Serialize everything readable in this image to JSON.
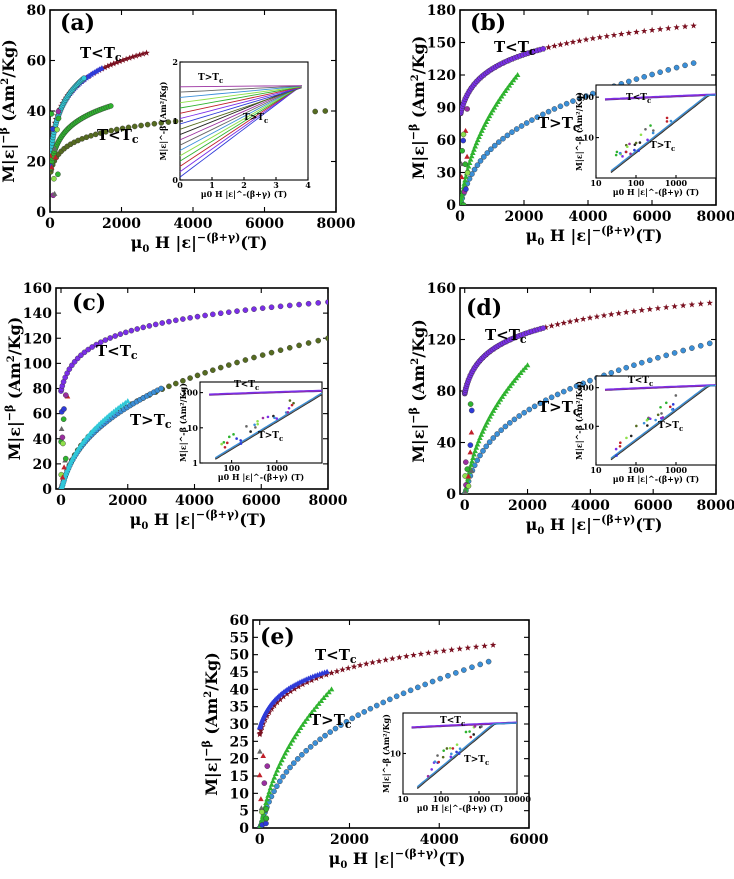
{
  "figure": {
    "colors": {
      "red": "#c0202a",
      "maroon": "#7a1020",
      "blue": "#2e3ad8",
      "violet": "#7a2ee8",
      "olive": "#556b20",
      "green": "#2fb32f",
      "lime": "#8ee04a",
      "sky": "#3a8fd8",
      "cyan": "#30c8d8",
      "grey": "#666666",
      "black": "#222222",
      "purple": "#9a2fa0"
    }
  },
  "chart_data": [
    {
      "id": "a",
      "type": "scatter",
      "panel_label": "(a)",
      "ylabel": "M|ε|^-β (Am²/Kg)",
      "ylabel_parts": {
        "main": "M|ε|",
        "exp": "−β",
        "unit": "(Am",
        "unit_sup": "2",
        "unit_end": "/Kg)"
      },
      "xlabel_parts": {
        "mu": "μ",
        "sub": "0",
        "main": " H |ε|",
        "exp": "−(β+γ)",
        "unit": "(T)"
      },
      "xlim": [
        0,
        8000
      ],
      "ylim": [
        0,
        80
      ],
      "xticks": [
        0,
        2000,
        4000,
        6000,
        8000
      ],
      "xtick_labels": [
        "0",
        "2000",
        "4000",
        "6000",
        "8000"
      ],
      "yticks": [
        0,
        20,
        40,
        60,
        80
      ],
      "ytick_labels": [
        "0",
        "20",
        "40",
        "60",
        "80"
      ],
      "annotations": [
        "T<T",
        "T<T"
      ],
      "annotation_sub": "c",
      "series": [
        {
          "name": "olive-long",
          "color": "olive",
          "marker": "circle",
          "branch": "below",
          "a": 40.0,
          "k": 0.00072,
          "xmax": 7700
        },
        {
          "name": "red-star",
          "color": "maroon",
          "marker": "star",
          "branch": "below",
          "a": 63.0,
          "k": 0.00055,
          "xmax": 2700
        },
        {
          "name": "blue",
          "color": "blue",
          "marker": "tri",
          "branch": "below",
          "a": 57.0,
          "k": 0.0006,
          "xmax": 1450
        },
        {
          "name": "cyan",
          "color": "cyan",
          "marker": "circle",
          "branch": "below",
          "a": 53.0,
          "k": 0.0009,
          "xmax": 950
        },
        {
          "name": "green",
          "color": "green",
          "marker": "circle",
          "branch": "below",
          "a": 42.0,
          "k": 0.0009,
          "xmax": 1700
        }
      ],
      "inset": {
        "type": "line",
        "xlim": [
          0,
          4
        ],
        "ylim": [
          0,
          2
        ],
        "xticks": [
          0,
          1,
          2,
          3,
          4
        ],
        "xtick_labels": [
          "0",
          "1",
          "2",
          "3",
          "4"
        ],
        "yticks": [
          0,
          1,
          2
        ],
        "ytick_labels": [
          "0",
          "1",
          "2"
        ],
        "xlabel": "μ0 H |ε|^-(β+γ) (T)",
        "ylabel": "M|ε|^-β (Am²/Kg)",
        "annotations": [
          "T>T",
          "T>T"
        ],
        "annotation_sub": "c"
      }
    },
    {
      "id": "b",
      "type": "scatter",
      "panel_label": "(b)",
      "ylabel_parts": {
        "main": "M|ε|",
        "exp": "−β",
        "unit": "(Am",
        "unit_sup": "2",
        "unit_end": "/Kg)"
      },
      "xlabel_parts": {
        "mu": "μ",
        "sub": "0",
        "main": " H |ε|",
        "exp": "−(β+γ)",
        "unit": "(T)"
      },
      "xlim": [
        0,
        8000
      ],
      "ylim": [
        0,
        180
      ],
      "xticks": [
        0,
        2000,
        4000,
        6000,
        8000
      ],
      "xtick_labels": [
        "0",
        "2000",
        "4000",
        "6000",
        "8000"
      ],
      "yticks": [
        0,
        30,
        60,
        90,
        120,
        150,
        180
      ],
      "ytick_labels": [
        "0",
        "30",
        "60",
        "90",
        "120",
        "150",
        "180"
      ],
      "annotations": [
        "T<T",
        "T>T"
      ],
      "annotation_sub": "c",
      "series": [
        {
          "name": "maroon-star",
          "color": "maroon",
          "marker": "star",
          "branch": "below",
          "a": 82.0,
          "b": 1.0,
          "xmax": 7300
        },
        {
          "name": "violet",
          "color": "violet",
          "marker": "circle",
          "branch": "below",
          "a": 82.0,
          "b": 1.0,
          "xmax": 2600
        },
        {
          "name": "sky",
          "color": "sky",
          "marker": "circle",
          "branch": "above",
          "a": 131.0,
          "k": 0.00032,
          "xmax": 7300
        },
        {
          "name": "green",
          "color": "green",
          "marker": "tri",
          "branch": "above",
          "a": 120.0,
          "k": 0.00035,
          "xmax": 1800
        }
      ],
      "inset": {
        "type": "loglog",
        "xlim": [
          10,
          10000
        ],
        "ylim": [
          1,
          200
        ],
        "xticks": [
          10,
          100,
          1000
        ],
        "xtick_labels": [
          "10",
          "100",
          "1000"
        ],
        "yticks": [
          10,
          100
        ],
        "ytick_labels": [
          "10",
          "100"
        ],
        "xlabel": "μ0 H |ε|^-(β+γ) (T)",
        "ylabel": "M|ε|^-β (Am²/Kg)",
        "annotations": [
          "T<T",
          "T>T"
        ],
        "annotation_sub": "c"
      }
    },
    {
      "id": "c",
      "type": "scatter",
      "panel_label": "(c)",
      "ylabel_parts": {
        "main": "M|ε|",
        "exp": "−β",
        "unit": "(Am",
        "unit_sup": "2",
        "unit_end": "/Kg)"
      },
      "xlabel_parts": {
        "mu": "μ",
        "sub": "0",
        "main": " H |ε|",
        "exp": "−(β+γ)",
        "unit": "(T)"
      },
      "xlim": [
        -150,
        8000
      ],
      "ylim": [
        0,
        160
      ],
      "xticks": [
        0,
        2000,
        4000,
        6000,
        8000
      ],
      "xtick_labels": [
        "0",
        "2000",
        "4000",
        "6000",
        "8000"
      ],
      "yticks": [
        0,
        20,
        40,
        60,
        80,
        100,
        120,
        140,
        160
      ],
      "ytick_labels": [
        "0",
        "20",
        "40",
        "60",
        "80",
        "100",
        "120",
        "140",
        "160"
      ],
      "annotations": [
        "T<T",
        "T>T"
      ],
      "annotation_sub": "c",
      "series": [
        {
          "name": "violet",
          "color": "violet",
          "marker": "circle",
          "branch": "below",
          "a": 78.0,
          "b": 1.0,
          "xmax": 8000
        },
        {
          "name": "olive",
          "color": "olive",
          "marker": "circle",
          "branch": "above",
          "a": 120.0,
          "k": 0.00028,
          "xmax": 8000
        },
        {
          "name": "sky",
          "color": "sky",
          "marker": "circle",
          "branch": "above",
          "a": 80.0,
          "k": 0.00055,
          "xmax": 3000
        },
        {
          "name": "cyan",
          "color": "cyan",
          "marker": "tri",
          "branch": "above",
          "a": 70.0,
          "k": 0.0006,
          "xmax": 2000
        }
      ],
      "inset": {
        "type": "loglog",
        "xlim": [
          20,
          10000
        ],
        "ylim": [
          1,
          200
        ],
        "xticks": [
          100,
          1000
        ],
        "xtick_labels": [
          "100",
          "1000"
        ],
        "yticks": [
          1,
          10,
          100
        ],
        "ytick_labels": [
          "1",
          "10",
          "100"
        ],
        "xlabel": "μ0 H |ε|^-(β+γ) (T)",
        "ylabel": "M|ε|^-β (Am²/Kg)",
        "annotations": [
          "T<T",
          "T>T"
        ],
        "annotation_sub": "c"
      }
    },
    {
      "id": "d",
      "type": "scatter",
      "panel_label": "(d)",
      "ylabel_parts": {
        "main": "M|ε|",
        "exp": "−β",
        "unit": "(Am",
        "unit_sup": "2",
        "unit_end": "/Kg)"
      },
      "xlabel_parts": {
        "mu": "μ",
        "sub": "0",
        "main": " H |ε|",
        "exp": "−(β+γ)",
        "unit": "(T)"
      },
      "xlim": [
        -150,
        8000
      ],
      "ylim": [
        0,
        160
      ],
      "xticks": [
        0,
        2000,
        4000,
        6000,
        8000
      ],
      "xtick_labels": [
        "0",
        "2000",
        "4000",
        "6000",
        "8000"
      ],
      "yticks": [
        0,
        40,
        80,
        120,
        160
      ],
      "ytick_labels": [
        "0",
        "40",
        "80",
        "120",
        "160"
      ],
      "annotations": [
        "T<T",
        "T>T"
      ],
      "annotation_sub": "c",
      "series": [
        {
          "name": "maroon-star",
          "color": "maroon",
          "marker": "star",
          "branch": "below",
          "a": 78.0,
          "b": 1.0,
          "xmax": 7800
        },
        {
          "name": "violet",
          "color": "violet",
          "marker": "circle",
          "branch": "below",
          "a": 78.0,
          "b": 1.0,
          "xmax": 2500
        },
        {
          "name": "sky",
          "color": "sky",
          "marker": "circle",
          "branch": "above",
          "a": 117.0,
          "k": 0.00031,
          "xmax": 7800
        },
        {
          "name": "green",
          "color": "green",
          "marker": "tri",
          "branch": "above",
          "a": 100.0,
          "k": 0.00035,
          "xmax": 2000
        }
      ],
      "inset": {
        "type": "loglog",
        "xlim": [
          10,
          10000
        ],
        "ylim": [
          1,
          200
        ],
        "xticks": [
          10,
          100,
          1000
        ],
        "xtick_labels": [
          "10",
          "100",
          "1000"
        ],
        "yticks": [
          10,
          100
        ],
        "ytick_labels": [
          "10",
          "100"
        ],
        "xlabel": "μ0 H |ε|^-(β+γ) (T)",
        "ylabel": "M|ε|^-β (Am²/Kg)",
        "annotations": [
          "T<T",
          "T>T"
        ],
        "annotation_sub": "c"
      }
    },
    {
      "id": "e",
      "type": "scatter",
      "panel_label": "(e)",
      "ylabel_parts": {
        "main": "M|ε|",
        "exp": "−β",
        "unit": "(Am",
        "unit_sup": "2",
        "unit_end": "/Kg)"
      },
      "xlabel_parts": {
        "mu": "μ",
        "sub": "0",
        "main": " H |ε|",
        "exp": "−(β+γ)",
        "unit": "(T)"
      },
      "xlim": [
        -150,
        6000
      ],
      "ylim": [
        0,
        60
      ],
      "xticks": [
        0,
        2000,
        4000,
        6000
      ],
      "xtick_labels": [
        "0",
        "2000",
        "4000",
        "6000"
      ],
      "yticks": [
        0,
        5,
        10,
        15,
        20,
        25,
        30,
        35,
        40,
        45,
        50,
        55,
        60
      ],
      "ytick_labels": [
        "0",
        "5",
        "10",
        "15",
        "20",
        "25",
        "30",
        "35",
        "40",
        "45",
        "50",
        "55",
        "60"
      ],
      "annotations": [
        "T<T",
        "T>T"
      ],
      "annotation_sub": "c",
      "series": [
        {
          "name": "maroon-star",
          "color": "maroon",
          "marker": "star",
          "branch": "below",
          "a": 27.0,
          "b": 1.0,
          "xmax": 5200
        },
        {
          "name": "blue",
          "color": "blue",
          "marker": "tri",
          "branch": "below",
          "a": 29.0,
          "b": 1.0,
          "xmax": 1500
        },
        {
          "name": "sky",
          "color": "sky",
          "marker": "circle",
          "branch": "above",
          "a": 48.0,
          "k": 0.00042,
          "xmax": 5100
        },
        {
          "name": "green",
          "color": "green",
          "marker": "tri",
          "branch": "above",
          "a": 40.0,
          "k": 0.0005,
          "xmax": 1600
        }
      ],
      "inset": {
        "type": "loglog",
        "xlim": [
          10,
          10000
        ],
        "ylim": [
          1,
          100
        ],
        "xticks": [
          10,
          100,
          1000,
          10000
        ],
        "xtick_labels": [
          "10",
          "100",
          "1000",
          "10000"
        ],
        "yticks": [
          10
        ],
        "ytick_labels": [
          "10"
        ],
        "xlabel": "μ0 H |ε|^-(β+γ) (T)",
        "ylabel": "M|ε|^-β (Am²/Kg)",
        "annotations": [
          "T<T",
          "T>T"
        ],
        "annotation_sub": "c"
      }
    }
  ]
}
